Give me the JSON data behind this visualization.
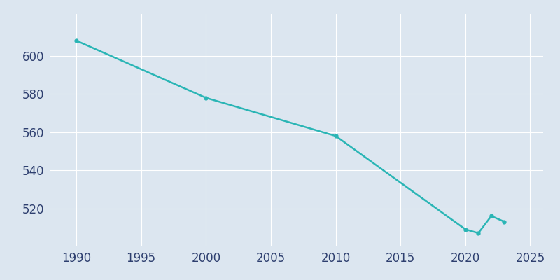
{
  "years": [
    1990,
    2000,
    2010,
    2020,
    2021,
    2022,
    2023
  ],
  "population": [
    608,
    578,
    558,
    509,
    507,
    516,
    513
  ],
  "line_color": "#2ab5b5",
  "marker": "o",
  "marker_size": 3.5,
  "line_width": 1.8,
  "bg_color": "#dce6f0",
  "plot_bg_color": "#dce6f0",
  "grid_color": "#ffffff",
  "tick_label_color": "#2e3f6f",
  "xlim": [
    1988,
    2026
  ],
  "ylim": [
    500,
    622
  ],
  "xticks": [
    1990,
    1995,
    2000,
    2005,
    2010,
    2015,
    2020,
    2025
  ],
  "yticks": [
    520,
    540,
    560,
    580,
    600
  ],
  "tick_fontsize": 12,
  "grid_linewidth": 0.8
}
